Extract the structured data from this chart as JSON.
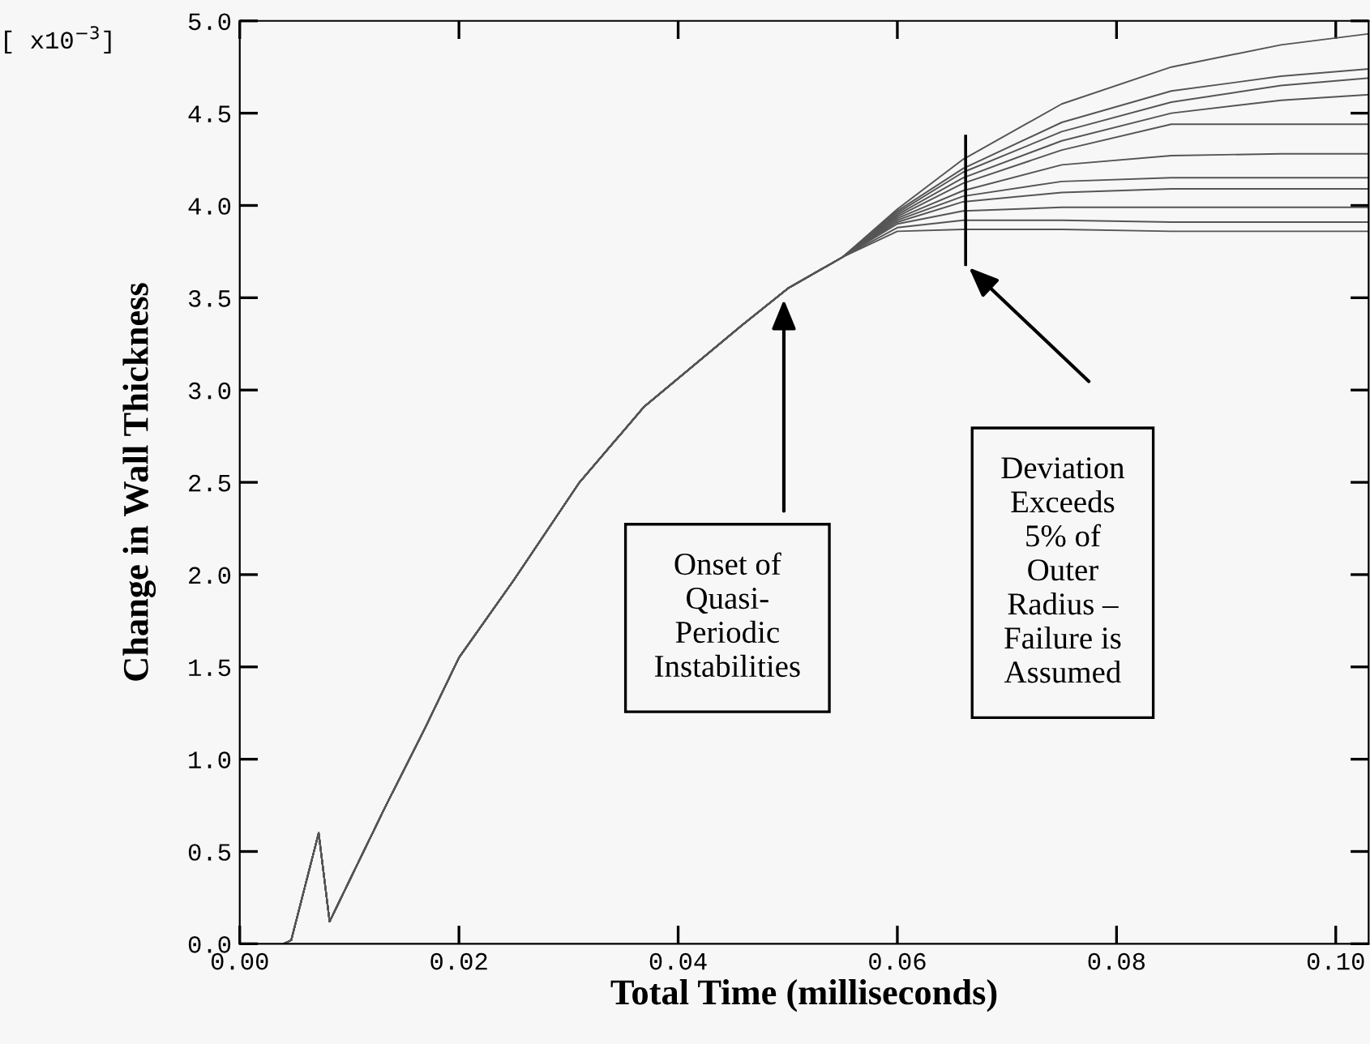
{
  "chart_data": {
    "type": "line",
    "xlabel": "Total Time (milliseconds)",
    "ylabel": "Change in Wall Thickness",
    "x": [
      0.004,
      0.0047,
      0.0072,
      0.0082,
      0.0104,
      0.0131,
      0.017,
      0.02,
      0.025,
      0.031,
      0.0369,
      0.0458,
      0.05,
      0.055,
      0.06,
      0.066,
      0.075,
      0.085,
      0.095,
      0.103
    ],
    "series": [
      {
        "color": "#555555",
        "values": [
          0,
          0.02,
          0.6,
          0.12,
          0.39,
          0.72,
          1.18,
          1.55,
          1.97,
          2.5,
          2.91,
          3.35,
          3.55,
          3.72,
          3.98,
          4.25,
          4.55,
          4.75,
          4.87,
          4.93
        ]
      },
      {
        "color": "#555555",
        "values": [
          0,
          0.02,
          0.6,
          0.12,
          0.39,
          0.72,
          1.18,
          1.55,
          1.97,
          2.5,
          2.91,
          3.35,
          3.55,
          3.72,
          3.97,
          4.2,
          4.45,
          4.62,
          4.7,
          4.74
        ]
      },
      {
        "color": "#555555",
        "values": [
          0,
          0.02,
          0.6,
          0.12,
          0.39,
          0.72,
          1.18,
          1.55,
          1.97,
          2.5,
          2.91,
          3.35,
          3.55,
          3.72,
          3.96,
          4.18,
          4.4,
          4.56,
          4.65,
          4.69
        ]
      },
      {
        "color": "#555555",
        "values": [
          0,
          0.02,
          0.6,
          0.12,
          0.39,
          0.72,
          1.18,
          1.55,
          1.97,
          2.5,
          2.91,
          3.35,
          3.55,
          3.72,
          3.95,
          4.15,
          4.35,
          4.5,
          4.57,
          4.6
        ]
      },
      {
        "color": "#555555",
        "values": [
          0,
          0.02,
          0.6,
          0.12,
          0.39,
          0.72,
          1.18,
          1.55,
          1.97,
          2.5,
          2.91,
          3.35,
          3.55,
          3.72,
          3.94,
          4.12,
          4.3,
          4.44,
          4.44,
          4.44
        ]
      },
      {
        "color": "#555555",
        "values": [
          0,
          0.02,
          0.6,
          0.12,
          0.39,
          0.72,
          1.18,
          1.55,
          1.97,
          2.5,
          2.91,
          3.35,
          3.55,
          3.72,
          3.93,
          4.08,
          4.22,
          4.27,
          4.28,
          4.28
        ]
      },
      {
        "color": "#555555",
        "values": [
          0,
          0.02,
          0.6,
          0.12,
          0.39,
          0.72,
          1.18,
          1.55,
          1.97,
          2.5,
          2.91,
          3.35,
          3.55,
          3.72,
          3.92,
          4.05,
          4.13,
          4.15,
          4.15,
          4.15
        ]
      },
      {
        "color": "#555555",
        "values": [
          0,
          0.02,
          0.6,
          0.12,
          0.39,
          0.72,
          1.18,
          1.55,
          1.97,
          2.5,
          2.91,
          3.35,
          3.55,
          3.72,
          3.91,
          4.02,
          4.07,
          4.09,
          4.09,
          4.09
        ]
      },
      {
        "color": "#555555",
        "values": [
          0,
          0.02,
          0.6,
          0.12,
          0.39,
          0.72,
          1.18,
          1.55,
          1.97,
          2.5,
          2.91,
          3.35,
          3.55,
          3.72,
          3.9,
          3.97,
          3.99,
          3.99,
          3.99,
          3.99
        ]
      },
      {
        "color": "#555555",
        "values": [
          0,
          0.02,
          0.6,
          0.12,
          0.39,
          0.72,
          1.18,
          1.55,
          1.97,
          2.5,
          2.91,
          3.35,
          3.55,
          3.72,
          3.88,
          3.92,
          3.92,
          3.91,
          3.91,
          3.91
        ]
      },
      {
        "color": "#555555",
        "values": [
          0,
          0.02,
          0.6,
          0.12,
          0.39,
          0.72,
          1.18,
          1.55,
          1.97,
          2.5,
          2.91,
          3.35,
          3.55,
          3.72,
          3.86,
          3.87,
          3.87,
          3.86,
          3.86,
          3.86
        ]
      }
    ],
    "xlim": [
      0,
      0.103
    ],
    "ylim": [
      0,
      5.0
    ],
    "xticks": [
      {
        "value": 0,
        "label": "0.00"
      },
      0.02,
      0.04,
      0.06,
      0.08,
      {
        "value": 0.1,
        "label": "0.10"
      }
    ],
    "yticks": [
      {
        "value": 0,
        "label": "0.0"
      },
      0.5,
      {
        "value": 1,
        "label": "1.0"
      },
      1.5,
      {
        "value": 2,
        "label": "2.0"
      },
      2.5,
      {
        "value": 3,
        "label": "3.0"
      },
      3.5,
      {
        "value": 4,
        "label": "4.0"
      },
      4.5,
      {
        "value": 5,
        "label": "5.0"
      }
    ],
    "annotations": [
      "[ x10$^{−3}$]",
      "Onset of\nQuasi-\nPeriodic\nInstabilities",
      "Deviation\nExceeds\n5% of\nOuter\nRadius –\nFailure is\nAssumed"
    ],
    "grid": false,
    "marker": "none",
    "line_style": "solid"
  }
}
